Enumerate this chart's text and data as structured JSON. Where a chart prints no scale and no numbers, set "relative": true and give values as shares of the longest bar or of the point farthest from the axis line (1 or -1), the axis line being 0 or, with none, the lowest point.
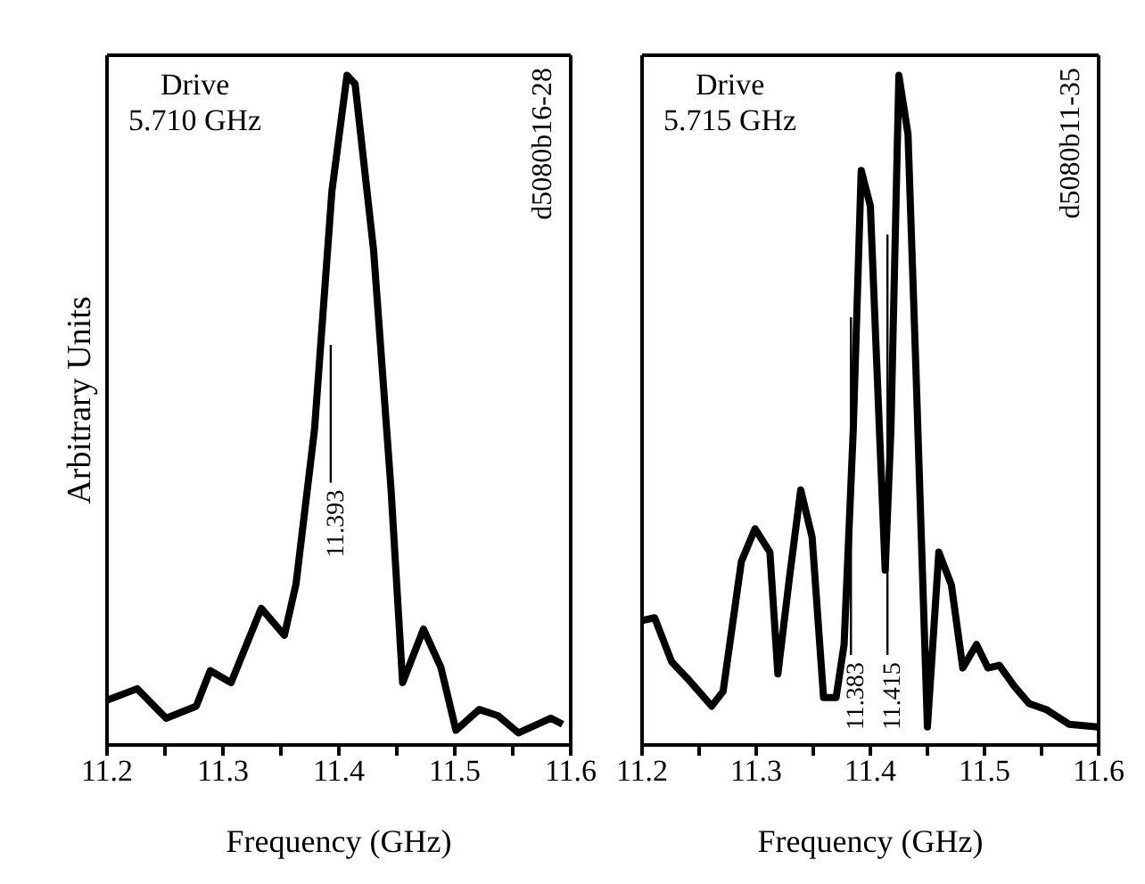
{
  "chart_data": [
    {
      "type": "line",
      "xlabel": "Frequency (GHz)",
      "ylabel": "Arbitrary Units",
      "relative": true,
      "xlim": [
        11.2,
        11.6
      ],
      "xticks": [
        11.2,
        {
          "value": 11.25,
          "label": null
        },
        11.3,
        {
          "value": 11.35,
          "label": null
        },
        11.4,
        {
          "value": 11.45,
          "label": null
        },
        11.5,
        {
          "value": 11.55,
          "label": null
        },
        11.6
      ],
      "tick_labels": "x",
      "legend": false,
      "marker": "none",
      "line_style": "solid",
      "annotations": [
        "Drive\n5.710 GHz",
        "d5080b16-28"
      ],
      "ref_lines": [
        {
          "axis": "x",
          "value": 11.393,
          "label": "11.393"
        }
      ],
      "series": [
        {
          "color": "#000000",
          "x": [
            11.2,
            11.226,
            11.251,
            11.277,
            11.289,
            11.307,
            11.333,
            11.353,
            11.363,
            11.379,
            11.394,
            11.407,
            11.414,
            11.43,
            11.445,
            11.455,
            11.473,
            11.488,
            11.501,
            11.521,
            11.537,
            11.555,
            11.583,
            11.593
          ],
          "values": [
            0.067,
            0.084,
            0.04,
            0.058,
            0.111,
            0.093,
            0.204,
            0.164,
            0.24,
            0.471,
            0.827,
            1.0,
            0.987,
            0.738,
            0.382,
            0.093,
            0.173,
            0.116,
            0.022,
            0.053,
            0.044,
            0.018,
            0.04,
            0.031
          ]
        }
      ]
    },
    {
      "type": "line",
      "xlabel": "Frequency (GHz)",
      "relative": true,
      "xlim": [
        11.2,
        11.6
      ],
      "xticks": [
        11.2,
        {
          "value": 11.25,
          "label": null
        },
        11.3,
        {
          "value": 11.35,
          "label": null
        },
        11.4,
        {
          "value": 11.45,
          "label": null
        },
        11.5,
        {
          "value": 11.55,
          "label": null
        },
        11.6
      ],
      "tick_labels": "x",
      "legend": false,
      "marker": "none",
      "line_style": "solid",
      "annotations": [
        "Drive\n5.715 GHz",
        "d5080b11-35"
      ],
      "ref_lines": [
        {
          "axis": "x",
          "value": 11.383,
          "label": "11.383"
        },
        {
          "axis": "x",
          "value": 11.415,
          "label": "11.415"
        }
      ],
      "series": [
        {
          "color": "#000000",
          "x": [
            11.2,
            11.211,
            11.226,
            11.241,
            11.261,
            11.271,
            11.287,
            11.299,
            11.312,
            11.319,
            11.329,
            11.339,
            11.349,
            11.359,
            11.37,
            11.377,
            11.385,
            11.392,
            11.4,
            11.408,
            11.413,
            11.418,
            11.425,
            11.433,
            11.44,
            11.45,
            11.46,
            11.471,
            11.481,
            11.493,
            11.503,
            11.513,
            11.526,
            11.539,
            11.554,
            11.574,
            11.599
          ],
          "values": [
            0.186,
            0.19,
            0.124,
            0.097,
            0.058,
            0.08,
            0.274,
            0.323,
            0.288,
            0.106,
            0.248,
            0.381,
            0.31,
            0.071,
            0.071,
            0.15,
            0.469,
            0.858,
            0.805,
            0.469,
            0.261,
            0.469,
            1.0,
            0.912,
            0.558,
            0.027,
            0.288,
            0.239,
            0.115,
            0.15,
            0.115,
            0.119,
            0.088,
            0.062,
            0.053,
            0.031,
            0.027
          ]
        }
      ]
    }
  ]
}
